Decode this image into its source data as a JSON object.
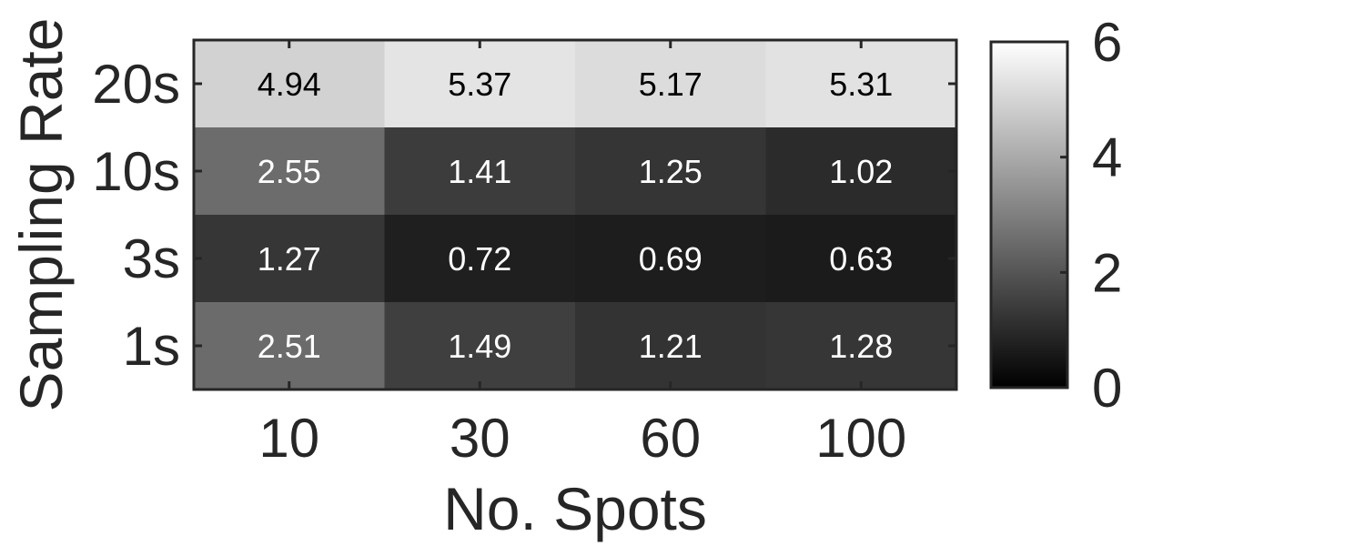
{
  "chart_data": {
    "type": "heatmap",
    "title": "",
    "xlabel": "No. Spots",
    "ylabel": "Sampling Rate",
    "x_categories": [
      "10",
      "30",
      "60",
      "100"
    ],
    "y_categories": [
      "20s",
      "10s",
      "3s",
      "1s"
    ],
    "values": [
      [
        4.94,
        5.37,
        5.17,
        5.31
      ],
      [
        2.55,
        1.41,
        1.25,
        1.02
      ],
      [
        1.27,
        0.72,
        0.69,
        0.63
      ],
      [
        2.51,
        1.49,
        1.21,
        1.28
      ]
    ],
    "value_labels": [
      [
        "4.94",
        "5.37",
        "5.17",
        "5.31"
      ],
      [
        "2.55",
        "1.41",
        "1.25",
        "1.02"
      ],
      [
        "1.27",
        "0.72",
        "0.69",
        "0.63"
      ],
      [
        "2.51",
        "1.49",
        "1.21",
        "1.28"
      ]
    ],
    "colormap": "gray",
    "color_range": [
      0,
      6
    ],
    "colorbar_ticks": [
      0,
      2,
      4,
      6
    ],
    "colorbar_tick_labels": [
      "0",
      "2",
      "4",
      "6"
    ],
    "grid": false
  }
}
